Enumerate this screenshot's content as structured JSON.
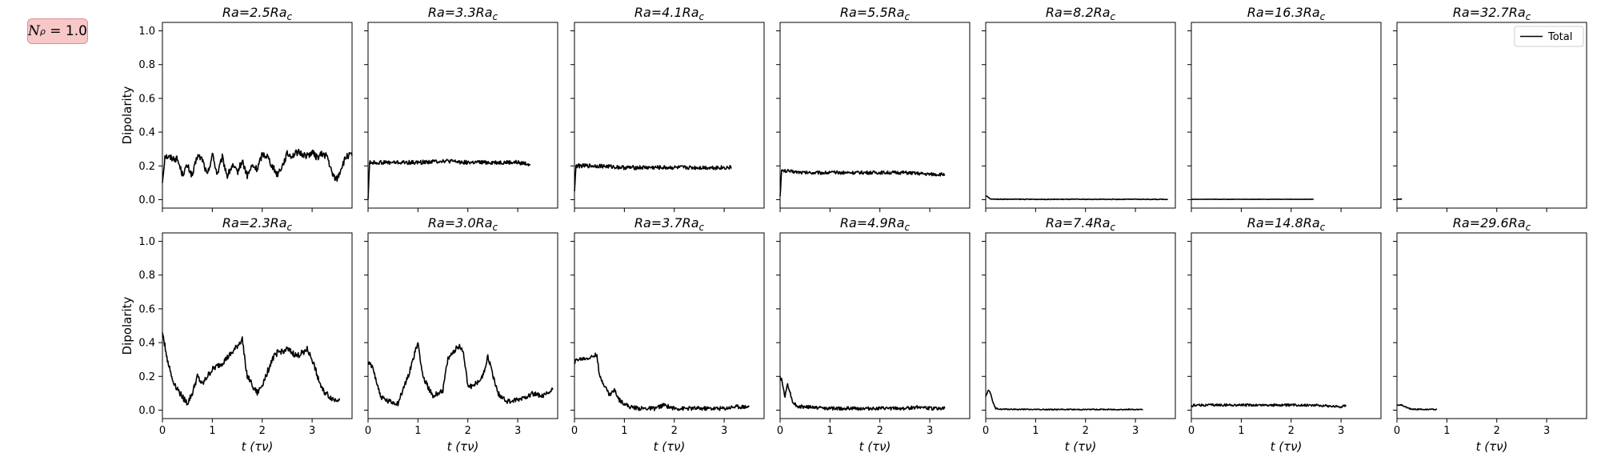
{
  "badge": {
    "symbol": "N",
    "subscript": "ρ",
    "value": "= 1.0"
  },
  "chart_data": {
    "type": "line",
    "ylabel": "Dipolarity",
    "xlabel": "t (τν)",
    "xlim": [
      0,
      3.8
    ],
    "ylim": [
      -0.05,
      1.05
    ],
    "xticks": [
      0,
      1,
      2,
      3
    ],
    "yticks": [
      0.0,
      0.2,
      0.4,
      0.6,
      0.8,
      1.0
    ],
    "legend": {
      "label": "Total",
      "position": "top-right"
    },
    "panels": [
      {
        "title": "Ra = 2.5Ra_c",
        "title_text": "Ra=2.5Ra",
        "row": 0,
        "col": 0,
        "noise": 0.02,
        "x": [
          0,
          0.05,
          0.15,
          0.3,
          0.4,
          0.5,
          0.6,
          0.7,
          0.8,
          0.9,
          1.0,
          1.1,
          1.2,
          1.3,
          1.4,
          1.5,
          1.6,
          1.7,
          1.8,
          1.9,
          2.0,
          2.1,
          2.2,
          2.3,
          2.4,
          2.5,
          2.6,
          2.7,
          2.8,
          2.9,
          3.0,
          3.1,
          3.2,
          3.3,
          3.4,
          3.5,
          3.6,
          3.7,
          3.8
        ],
        "y": [
          0.1,
          0.26,
          0.25,
          0.24,
          0.15,
          0.2,
          0.14,
          0.26,
          0.24,
          0.14,
          0.27,
          0.15,
          0.25,
          0.14,
          0.2,
          0.16,
          0.23,
          0.14,
          0.2,
          0.18,
          0.27,
          0.26,
          0.2,
          0.15,
          0.2,
          0.27,
          0.26,
          0.28,
          0.27,
          0.26,
          0.28,
          0.25,
          0.27,
          0.26,
          0.15,
          0.12,
          0.2,
          0.26,
          0.26
        ]
      },
      {
        "title": "Ra = 3.3Ra_c",
        "title_text": "Ra=3.3Ra",
        "row": 0,
        "col": 1,
        "noise": 0.012,
        "x": [
          0,
          0.03,
          0.1,
          0.5,
          1.0,
          1.5,
          2.0,
          2.5,
          3.0,
          3.25
        ],
        "y": [
          0.0,
          0.22,
          0.22,
          0.22,
          0.22,
          0.23,
          0.22,
          0.22,
          0.22,
          0.21
        ]
      },
      {
        "title": "Ra = 4.1Ra_c",
        "title_text": "Ra=4.1Ra",
        "row": 0,
        "col": 2,
        "noise": 0.012,
        "x": [
          0,
          0.03,
          0.1,
          0.5,
          1.0,
          1.5,
          2.0,
          2.5,
          3.0,
          3.15
        ],
        "y": [
          0.05,
          0.2,
          0.2,
          0.2,
          0.19,
          0.19,
          0.19,
          0.19,
          0.19,
          0.19
        ]
      },
      {
        "title": "Ra = 5.5Ra_c",
        "title_text": "Ra=5.5Ra",
        "row": 0,
        "col": 3,
        "noise": 0.01,
        "x": [
          0,
          0.03,
          0.1,
          0.5,
          1.0,
          1.5,
          2.0,
          2.5,
          3.0,
          3.3
        ],
        "y": [
          0.02,
          0.17,
          0.17,
          0.16,
          0.16,
          0.16,
          0.16,
          0.16,
          0.15,
          0.15
        ]
      },
      {
        "title": "Ra = 8.2Ra_c",
        "title_text": "Ra=8.2Ra",
        "row": 0,
        "col": 4,
        "noise": 0.002,
        "x": [
          0,
          0.02,
          0.1,
          1.0,
          2.0,
          3.0,
          3.65
        ],
        "y": [
          0.02,
          0.02,
          0.003,
          0.002,
          0.002,
          0.002,
          0.002
        ]
      },
      {
        "title": "Ra = 16.3Ra_c",
        "title_text": "Ra=16.3Ra",
        "row": 0,
        "col": 5,
        "noise": 0.001,
        "x": [
          0,
          0.05,
          1.0,
          2.0,
          2.45
        ],
        "y": [
          0.002,
          0.002,
          0.002,
          0.002,
          0.002
        ]
      },
      {
        "title": "Ra = 32.7Ra_c",
        "title_text": "Ra=32.7Ra",
        "row": 0,
        "col": 6,
        "noise": 0.001,
        "x": [
          0,
          0.1
        ],
        "y": [
          0.003,
          0.003
        ]
      },
      {
        "title": "Ra = 2.3Ra_c",
        "title_text": "Ra=2.3Ra",
        "row": 1,
        "col": 0,
        "noise": 0.018,
        "x": [
          0,
          0.05,
          0.1,
          0.2,
          0.35,
          0.5,
          0.6,
          0.7,
          0.8,
          0.9,
          1.0,
          1.2,
          1.4,
          1.6,
          1.7,
          1.8,
          1.9,
          2.0,
          2.2,
          2.3,
          2.5,
          2.7,
          2.8,
          2.9,
          3.0,
          3.2,
          3.35,
          3.45,
          3.55
        ],
        "y": [
          0.46,
          0.38,
          0.3,
          0.18,
          0.1,
          0.04,
          0.1,
          0.2,
          0.15,
          0.2,
          0.24,
          0.28,
          0.34,
          0.42,
          0.2,
          0.15,
          0.1,
          0.15,
          0.3,
          0.34,
          0.36,
          0.32,
          0.34,
          0.36,
          0.3,
          0.12,
          0.08,
          0.06,
          0.07
        ]
      },
      {
        "title": "Ra = 3.0Ra_c",
        "title_text": "Ra=3.0Ra",
        "row": 1,
        "col": 1,
        "noise": 0.016,
        "x": [
          0,
          0.1,
          0.25,
          0.4,
          0.6,
          0.8,
          1.0,
          1.1,
          1.3,
          1.5,
          1.6,
          1.8,
          1.9,
          2.0,
          2.1,
          2.3,
          2.4,
          2.6,
          2.8,
          3.0,
          3.3,
          3.5,
          3.7
        ],
        "y": [
          0.28,
          0.25,
          0.08,
          0.05,
          0.04,
          0.2,
          0.4,
          0.2,
          0.08,
          0.12,
          0.3,
          0.38,
          0.36,
          0.15,
          0.14,
          0.2,
          0.32,
          0.1,
          0.05,
          0.06,
          0.1,
          0.08,
          0.12
        ]
      },
      {
        "title": "Ra = 3.7Ra_c",
        "title_text": "Ra=3.7Ra",
        "row": 1,
        "col": 2,
        "noise": 0.012,
        "x": [
          0,
          0.05,
          0.3,
          0.45,
          0.5,
          0.6,
          0.7,
          0.8,
          0.9,
          1.0,
          1.1,
          1.3,
          1.6,
          1.8,
          2.0,
          2.5,
          3.0,
          3.2,
          3.5
        ],
        "y": [
          0.28,
          0.3,
          0.31,
          0.33,
          0.2,
          0.15,
          0.09,
          0.12,
          0.06,
          0.04,
          0.02,
          0.01,
          0.01,
          0.03,
          0.01,
          0.01,
          0.01,
          0.02,
          0.02
        ]
      },
      {
        "title": "Ra = 4.9Ra_c",
        "title_text": "Ra=4.9Ra",
        "row": 1,
        "col": 3,
        "noise": 0.01,
        "x": [
          0,
          0.03,
          0.1,
          0.15,
          0.25,
          0.35,
          0.5,
          1.0,
          1.5,
          2.0,
          2.5,
          2.8,
          3.0,
          3.3
        ],
        "y": [
          0.2,
          0.18,
          0.08,
          0.16,
          0.05,
          0.02,
          0.02,
          0.01,
          0.01,
          0.01,
          0.01,
          0.02,
          0.01,
          0.01
        ]
      },
      {
        "title": "Ra = 7.4Ra_c",
        "title_text": "Ra=7.4Ra",
        "row": 1,
        "col": 4,
        "noise": 0.003,
        "x": [
          0,
          0.05,
          0.1,
          0.15,
          0.2,
          0.3,
          0.5,
          1.0,
          2.0,
          3.15
        ],
        "y": [
          0.08,
          0.12,
          0.1,
          0.04,
          0.01,
          0.005,
          0.005,
          0.004,
          0.004,
          0.004
        ]
      },
      {
        "title": "Ra = 14.8Ra_c",
        "title_text": "Ra=14.8Ra",
        "row": 1,
        "col": 5,
        "noise": 0.007,
        "x": [
          0,
          0.05,
          0.5,
          1.0,
          1.5,
          2.0,
          2.5,
          3.0,
          3.1
        ],
        "y": [
          0.02,
          0.03,
          0.03,
          0.03,
          0.03,
          0.03,
          0.03,
          0.02,
          0.03
        ]
      },
      {
        "title": "Ra = 29.6Ra_c",
        "title_text": "Ra=29.6Ra",
        "row": 1,
        "col": 6,
        "noise": 0.003,
        "x": [
          0,
          0.1,
          0.2,
          0.3,
          0.5,
          0.8
        ],
        "y": [
          0.03,
          0.03,
          0.015,
          0.005,
          0.005,
          0.005
        ]
      }
    ]
  }
}
